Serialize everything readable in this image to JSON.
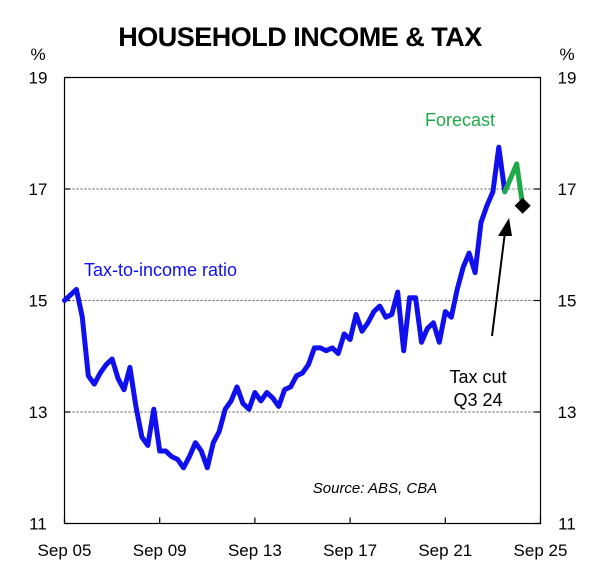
{
  "chart_data": {
    "type": "line",
    "title": "HOUSEHOLD INCOME & TAX",
    "y_unit_left": "%",
    "y_unit_right": "%",
    "ylim": [
      11,
      19
    ],
    "yticks": [
      11,
      13,
      15,
      17,
      19
    ],
    "ytick_labels": [
      "11",
      "13",
      "15",
      "17",
      "19"
    ],
    "xlim": [
      "2005-09",
      "2025-09"
    ],
    "xticks": [
      "2005-09",
      "2009-09",
      "2013-09",
      "2017-09",
      "2021-09",
      "2025-09"
    ],
    "xtick_labels": [
      "Sep 05",
      "Sep 09",
      "Sep 13",
      "Sep 17",
      "Sep 21",
      "Sep 25"
    ],
    "grid": "horizontal dashed at 13, 15, 17",
    "series": [
      {
        "name": "Tax-to-income ratio",
        "color": "#1010ee",
        "points": [
          [
            "2005-09",
            15.0
          ],
          [
            "2005-12",
            15.1
          ],
          [
            "2006-03",
            15.2
          ],
          [
            "2006-06",
            14.7
          ],
          [
            "2006-09",
            13.65
          ],
          [
            "2006-12",
            13.5
          ],
          [
            "2007-03",
            13.7
          ],
          [
            "2007-06",
            13.85
          ],
          [
            "2007-09",
            13.95
          ],
          [
            "2007-12",
            13.6
          ],
          [
            "2008-03",
            13.4
          ],
          [
            "2008-06",
            13.8
          ],
          [
            "2008-09",
            13.1
          ],
          [
            "2008-12",
            12.55
          ],
          [
            "2009-03",
            12.4
          ],
          [
            "2009-06",
            13.05
          ],
          [
            "2009-09",
            12.3
          ],
          [
            "2009-12",
            12.3
          ],
          [
            "2010-03",
            12.2
          ],
          [
            "2010-06",
            12.15
          ],
          [
            "2010-09",
            12.0
          ],
          [
            "2010-12",
            12.2
          ],
          [
            "2011-03",
            12.45
          ],
          [
            "2011-06",
            12.3
          ],
          [
            "2011-09",
            12.0
          ],
          [
            "2011-12",
            12.45
          ],
          [
            "2012-03",
            12.65
          ],
          [
            "2012-06",
            13.05
          ],
          [
            "2012-09",
            13.2
          ],
          [
            "2012-12",
            13.45
          ],
          [
            "2013-03",
            13.15
          ],
          [
            "2013-06",
            13.05
          ],
          [
            "2013-09",
            13.35
          ],
          [
            "2013-12",
            13.2
          ],
          [
            "2014-03",
            13.35
          ],
          [
            "2014-06",
            13.25
          ],
          [
            "2014-09",
            13.1
          ],
          [
            "2014-12",
            13.4
          ],
          [
            "2015-03",
            13.45
          ],
          [
            "2015-06",
            13.65
          ],
          [
            "2015-09",
            13.7
          ],
          [
            "2015-12",
            13.85
          ],
          [
            "2016-03",
            14.15
          ],
          [
            "2016-06",
            14.15
          ],
          [
            "2016-09",
            14.1
          ],
          [
            "2016-12",
            14.15
          ],
          [
            "2017-03",
            14.05
          ],
          [
            "2017-06",
            14.4
          ],
          [
            "2017-09",
            14.3
          ],
          [
            "2017-12",
            14.75
          ],
          [
            "2018-03",
            14.45
          ],
          [
            "2018-06",
            14.6
          ],
          [
            "2018-09",
            14.8
          ],
          [
            "2018-12",
            14.9
          ],
          [
            "2019-03",
            14.7
          ],
          [
            "2019-06",
            14.75
          ],
          [
            "2019-09",
            15.15
          ],
          [
            "2019-12",
            14.1
          ],
          [
            "2020-03",
            15.05
          ],
          [
            "2020-06",
            15.05
          ],
          [
            "2020-09",
            14.25
          ],
          [
            "2020-12",
            14.5
          ],
          [
            "2021-03",
            14.6
          ],
          [
            "2021-06",
            14.25
          ],
          [
            "2021-09",
            14.8
          ],
          [
            "2021-12",
            14.7
          ],
          [
            "2022-03",
            15.2
          ],
          [
            "2022-06",
            15.6
          ],
          [
            "2022-09",
            15.85
          ],
          [
            "2022-12",
            15.5
          ],
          [
            "2023-03",
            16.4
          ],
          [
            "2023-06",
            16.7
          ],
          [
            "2023-09",
            16.95
          ],
          [
            "2023-12",
            17.75
          ],
          [
            "2024-03",
            16.95
          ]
        ]
      },
      {
        "name": "Forecast",
        "color": "#1faa4a",
        "points": [
          [
            "2024-03",
            16.95
          ],
          [
            "2024-06",
            17.2
          ],
          [
            "2024-09",
            17.45
          ],
          [
            "2024-12",
            16.7
          ]
        ]
      }
    ],
    "annotations": {
      "series_label": "Tax-to-income ratio",
      "forecast_label": "Forecast",
      "tax_cut_line1": "Tax cut",
      "tax_cut_line2": "Q3 24",
      "tax_cut_point": [
        "2024-12",
        16.7
      ],
      "source": "Source: ABS, CBA"
    },
    "colors": {
      "actual": "#1010ee",
      "forecast": "#1faa4a",
      "axis": "#000000",
      "grid": "#555555"
    }
  }
}
